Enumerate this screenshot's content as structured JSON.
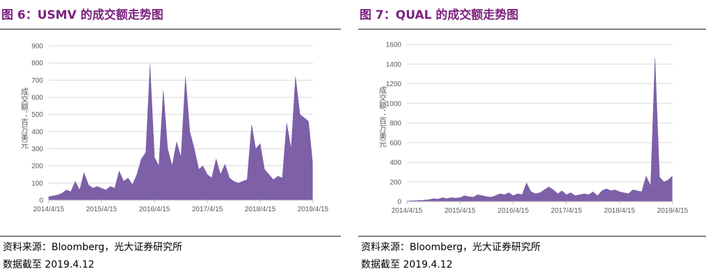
{
  "chart_data": [
    {
      "type": "area",
      "title": "图 6：USMV 的成交额走势图",
      "ylabel": "成交额：百万美元",
      "color": "#7d60a8",
      "grid": true,
      "x": [
        "2014/4/15",
        "2014/5/15",
        "2014/6/15",
        "2014/7/15",
        "2014/8/15",
        "2014/9/15",
        "2014/10/15",
        "2014/11/15",
        "2014/12/15",
        "2015/1/15",
        "2015/2/15",
        "2015/3/15",
        "2015/4/15",
        "2015/5/15",
        "2015/6/15",
        "2015/7/15",
        "2015/8/15",
        "2015/9/15",
        "2015/10/15",
        "2015/11/15",
        "2015/12/15",
        "2016/1/15",
        "2016/2/15",
        "2016/3/15",
        "2016/4/15",
        "2016/5/15",
        "2016/6/15",
        "2016/7/15",
        "2016/8/15",
        "2016/9/15",
        "2016/10/15",
        "2016/11/15",
        "2016/12/15",
        "2017/1/15",
        "2017/2/15",
        "2017/3/15",
        "2017/4/15",
        "2017/5/15",
        "2017/6/15",
        "2017/7/15",
        "2017/8/15",
        "2017/9/15",
        "2017/10/15",
        "2017/11/15",
        "2017/12/15",
        "2018/1/15",
        "2018/2/15",
        "2018/3/15",
        "2018/4/15",
        "2018/5/15",
        "2018/6/15",
        "2018/7/15",
        "2018/8/15",
        "2018/9/15",
        "2018/10/15",
        "2018/11/15",
        "2018/12/15",
        "2019/1/15",
        "2019/2/15",
        "2019/3/15",
        "2019/4/12"
      ],
      "values": [
        20,
        25,
        30,
        40,
        60,
        50,
        110,
        60,
        160,
        90,
        70,
        80,
        70,
        60,
        80,
        70,
        170,
        110,
        130,
        90,
        150,
        240,
        280,
        790,
        250,
        200,
        640,
        300,
        200,
        340,
        250,
        720,
        400,
        300,
        180,
        200,
        150,
        130,
        240,
        150,
        210,
        130,
        110,
        100,
        110,
        120,
        440,
        300,
        330,
        180,
        150,
        120,
        140,
        130,
        450,
        300,
        720,
        500,
        480,
        460,
        220
      ],
      "ylim": [
        0,
        900
      ],
      "yticks": [
        0,
        100,
        200,
        300,
        400,
        500,
        600,
        700,
        800,
        900
      ],
      "xticks": [
        "2014/4/15",
        "2015/4/15",
        "2016/4/15",
        "2017/4/15",
        "2018/4/15",
        "2019/4/15"
      ],
      "source": "资料来源：Bloomberg，光大证券研究所",
      "note": "数据截至 2019.4.12"
    },
    {
      "type": "area",
      "title": "图 7：QUAL 的成交额走势图",
      "ylabel": "成交额：百万美元",
      "color": "#7d60a8",
      "grid": true,
      "x": [
        "2014/4/15",
        "2014/5/15",
        "2014/6/15",
        "2014/7/15",
        "2014/8/15",
        "2014/9/15",
        "2014/10/15",
        "2014/11/15",
        "2014/12/15",
        "2015/1/15",
        "2015/2/15",
        "2015/3/15",
        "2015/4/15",
        "2015/5/15",
        "2015/6/15",
        "2015/7/15",
        "2015/8/15",
        "2015/9/15",
        "2015/10/15",
        "2015/11/15",
        "2015/12/15",
        "2016/1/15",
        "2016/2/15",
        "2016/3/15",
        "2016/4/15",
        "2016/5/15",
        "2016/6/15",
        "2016/7/15",
        "2016/8/15",
        "2016/9/15",
        "2016/10/15",
        "2016/11/15",
        "2016/12/15",
        "2017/1/15",
        "2017/2/15",
        "2017/3/15",
        "2017/4/15",
        "2017/5/15",
        "2017/6/15",
        "2017/7/15",
        "2017/8/15",
        "2017/9/15",
        "2017/10/15",
        "2017/11/15",
        "2017/12/15",
        "2018/1/15",
        "2018/2/15",
        "2018/3/15",
        "2018/4/15",
        "2018/5/15",
        "2018/6/15",
        "2018/7/15",
        "2018/8/15",
        "2018/9/15",
        "2018/10/15",
        "2018/11/15",
        "2018/12/15",
        "2019/1/15",
        "2019/2/15",
        "2019/3/15",
        "2019/4/12"
      ],
      "values": [
        5,
        8,
        10,
        12,
        15,
        20,
        30,
        25,
        40,
        30,
        40,
        35,
        40,
        60,
        50,
        45,
        70,
        60,
        50,
        45,
        60,
        80,
        70,
        90,
        60,
        80,
        70,
        190,
        100,
        80,
        90,
        120,
        150,
        120,
        80,
        110,
        70,
        90,
        60,
        70,
        80,
        70,
        100,
        60,
        110,
        130,
        110,
        120,
        100,
        90,
        80,
        120,
        110,
        100,
        260,
        160,
        1460,
        250,
        200,
        220,
        260
      ],
      "ylim": [
        0,
        1600
      ],
      "yticks": [
        0,
        200,
        400,
        600,
        800,
        1000,
        1200,
        1400,
        1600
      ],
      "xticks": [
        "2014/4/15",
        "2015/4/15",
        "2016/4/15",
        "2017/4/15",
        "2018/4/15",
        "2019/4/15"
      ],
      "source": "资料来源：Bloomberg，光大证券研究所",
      "note": "数据截至 2019.4.12"
    }
  ]
}
